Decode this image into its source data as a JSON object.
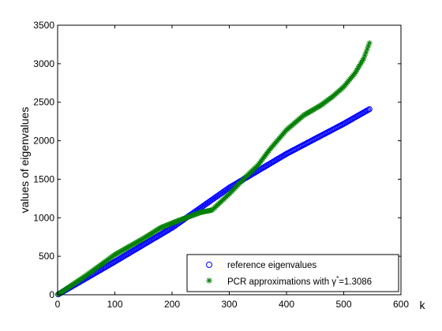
{
  "chart_data": {
    "type": "scatter",
    "xlabel": "k",
    "ylabel": "values of eigenvalues",
    "xlim": [
      0,
      600
    ],
    "ylim": [
      0,
      3500
    ],
    "x_ticks": [
      0,
      100,
      200,
      300,
      400,
      500,
      600
    ],
    "y_ticks": [
      0,
      500,
      1000,
      1500,
      2000,
      2500,
      3000,
      3500
    ],
    "grid": false,
    "legend_position": "bottom-right",
    "series": [
      {
        "name": "reference eigenvalues",
        "marker": "circle",
        "color": "#0000ff",
        "points": [
          [
            0,
            0
          ],
          [
            100,
            430
          ],
          [
            200,
            870
          ],
          [
            300,
            1390
          ],
          [
            400,
            1830
          ],
          [
            500,
            2220
          ],
          [
            545,
            2410
          ]
        ]
      },
      {
        "name": "PCR approximations with γ*=1.3086",
        "legend_parts": [
          "PCR approximations with γ",
          "*",
          "=1.3086"
        ],
        "marker": "asterisk",
        "color": "#008000",
        "points": [
          [
            0,
            0
          ],
          [
            50,
            250
          ],
          [
            100,
            520
          ],
          [
            150,
            730
          ],
          [
            180,
            870
          ],
          [
            210,
            960
          ],
          [
            250,
            1070
          ],
          [
            270,
            1100
          ],
          [
            300,
            1310
          ],
          [
            330,
            1540
          ],
          [
            350,
            1680
          ],
          [
            370,
            1880
          ],
          [
            400,
            2140
          ],
          [
            430,
            2330
          ],
          [
            460,
            2460
          ],
          [
            480,
            2570
          ],
          [
            500,
            2700
          ],
          [
            520,
            2880
          ],
          [
            535,
            3070
          ],
          [
            545,
            3270
          ]
        ]
      }
    ]
  }
}
